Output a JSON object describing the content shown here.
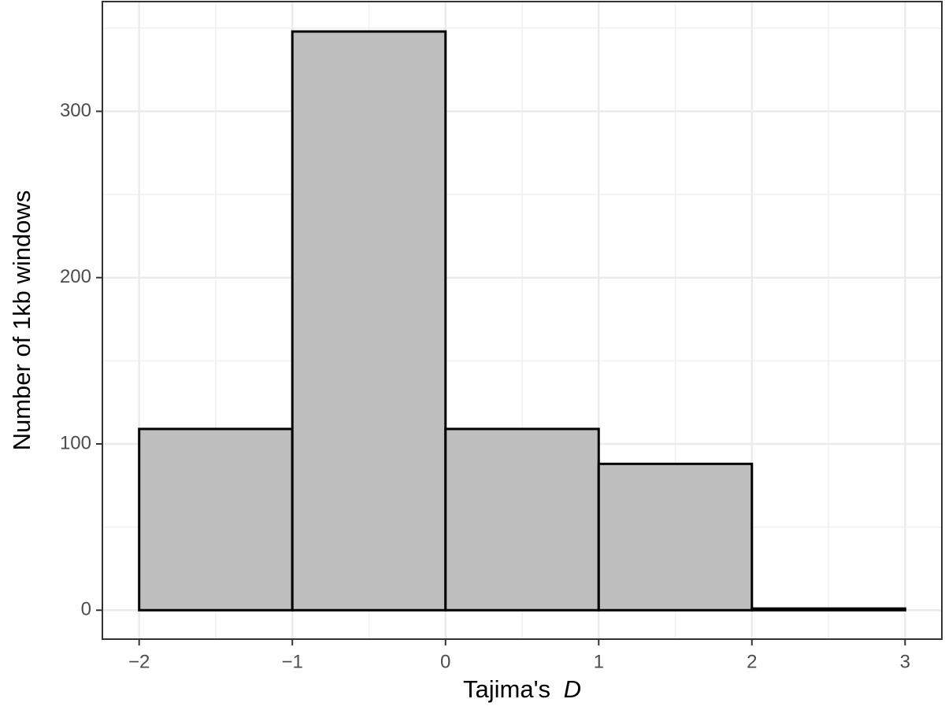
{
  "chart_data": {
    "type": "histogram",
    "x_label": [
      "Tajima's",
      "D"
    ],
    "y_label": "Number of 1kb windows",
    "bins": [
      -2,
      -1,
      0,
      1,
      2,
      3
    ],
    "values": [
      109,
      348,
      109,
      88,
      1
    ],
    "color": "#bebebe",
    "edge_color": "#000000",
    "xlim": [
      -2.24,
      3.24
    ],
    "ylim": [
      -17.4,
      366
    ],
    "xticks": [
      {
        "value": -2,
        "label": "−2"
      },
      {
        "value": -1,
        "label": "−1"
      },
      0,
      1,
      2,
      3
    ],
    "yticks": [
      0,
      100,
      200,
      300
    ],
    "grid": true
  }
}
